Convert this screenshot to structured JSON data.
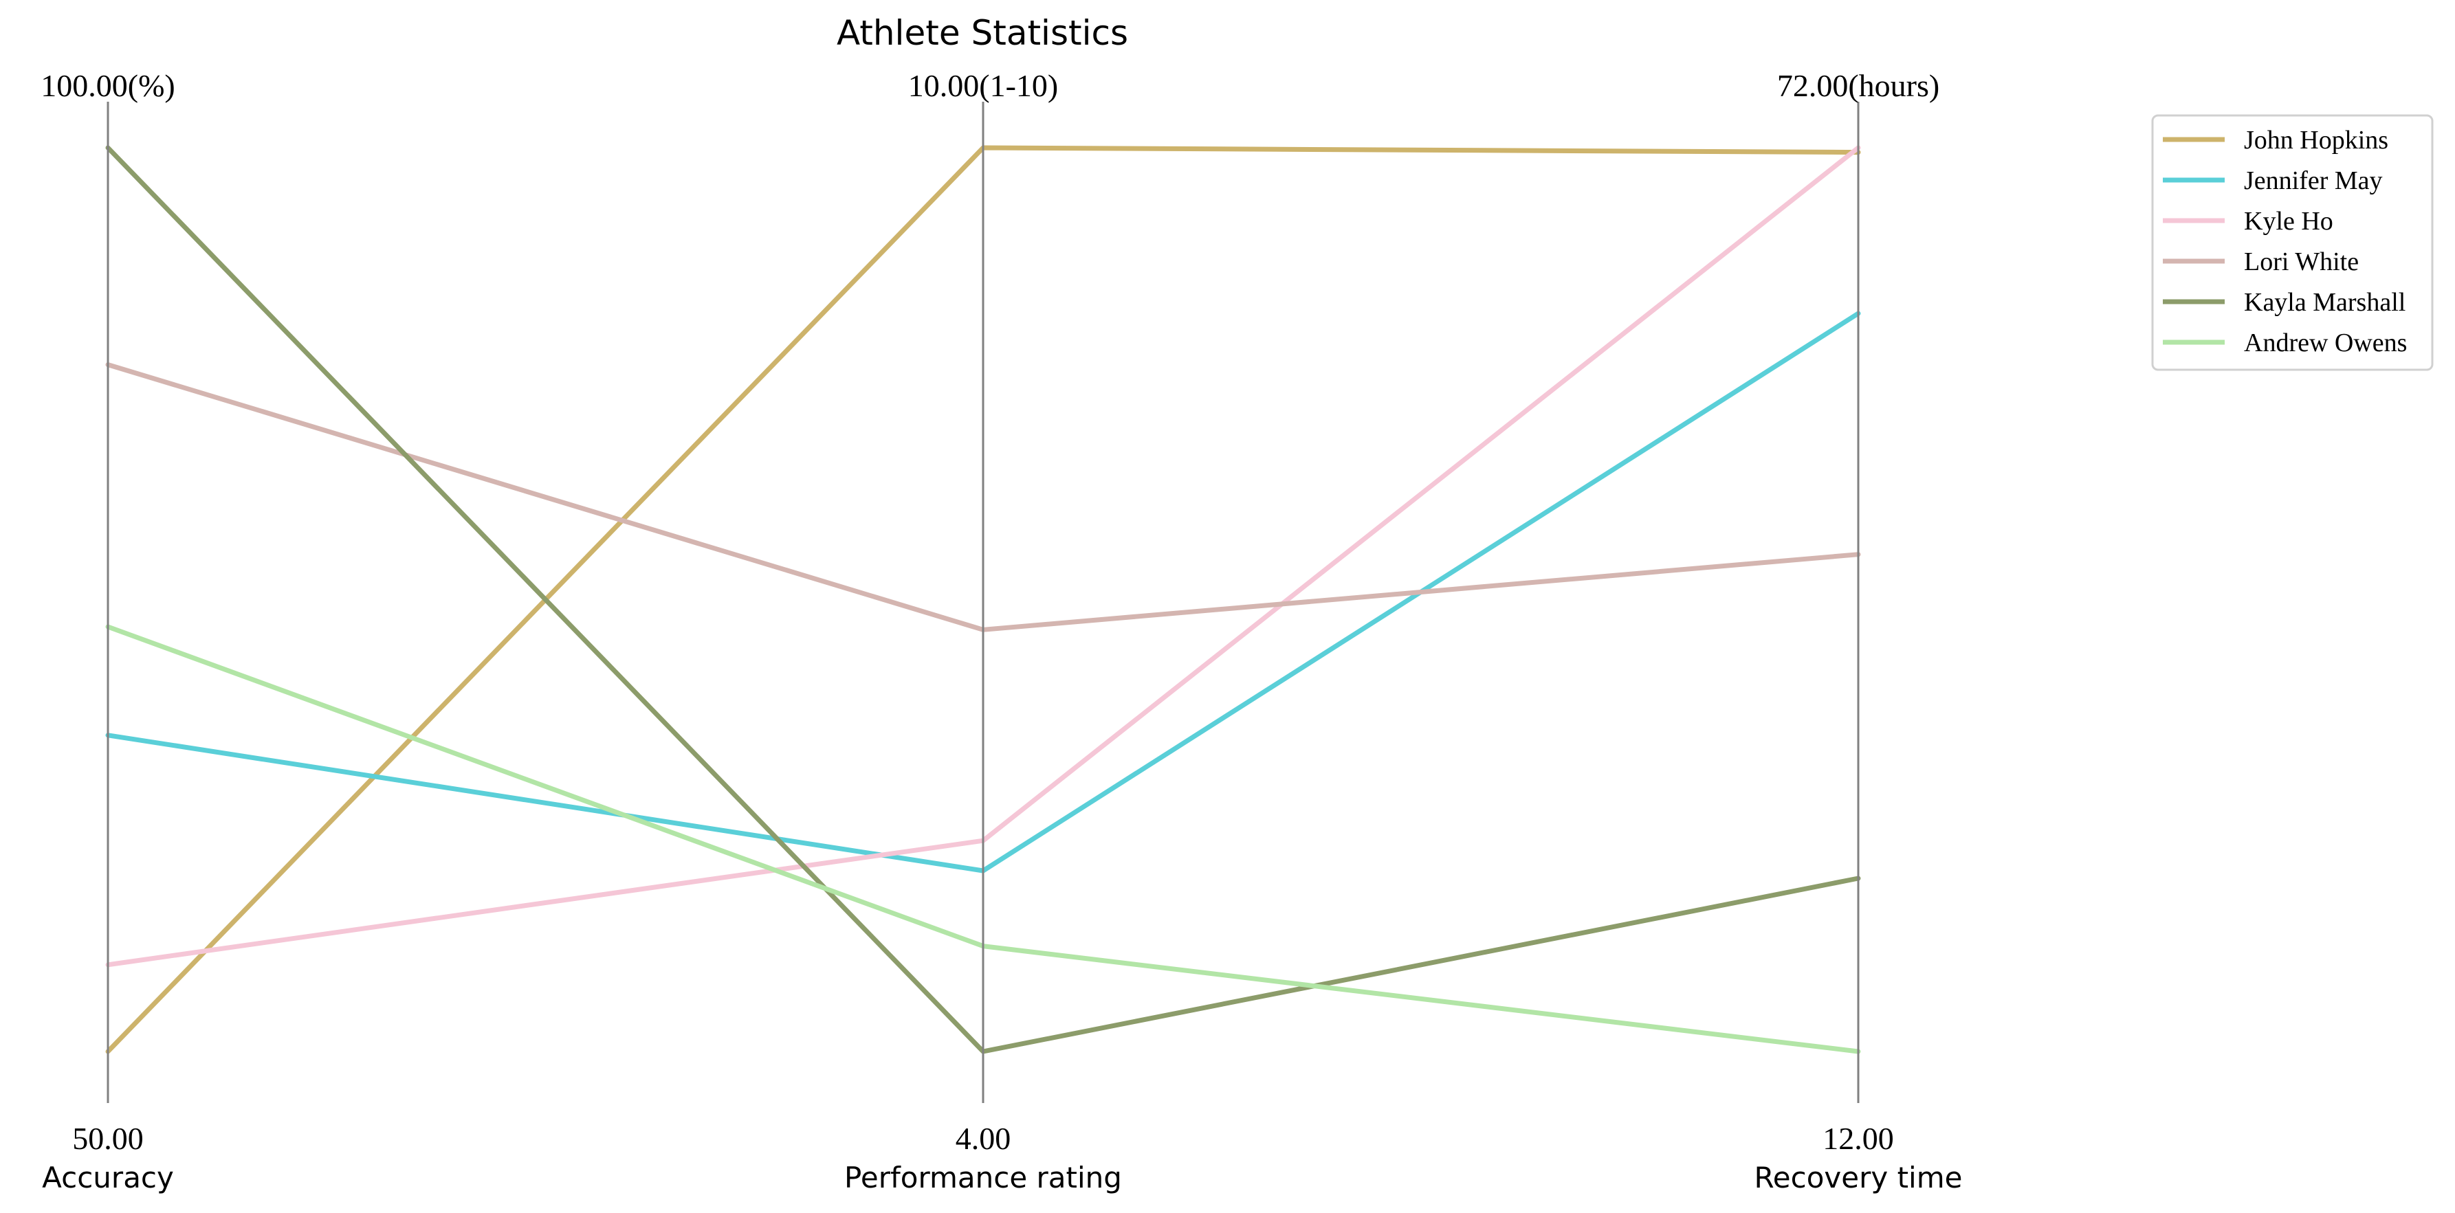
{
  "chart_data": {
    "type": "parallel-coordinates",
    "title": "Athlete Statistics",
    "axes": [
      {
        "label": "Accuracy",
        "min": 50.0,
        "max": 100.0,
        "min_label": "50.00",
        "max_label": "100.00(%)"
      },
      {
        "label": "Performance rating",
        "min": 4.0,
        "max": 10.0,
        "min_label": "4.00",
        "max_label": "10.00(1-10)"
      },
      {
        "label": "Recovery time",
        "min": 12.0,
        "max": 72.0,
        "min_label": "12.00",
        "max_label": "72.00(hours)"
      }
    ],
    "series": [
      {
        "name": "John Hopkins",
        "color": "#CDB36B",
        "values": [
          50.0,
          10.0,
          71.7
        ]
      },
      {
        "name": "Jennifer May",
        "color": "#5ACFD8",
        "values": [
          67.5,
          5.2,
          61.0
        ]
      },
      {
        "name": "Kyle Ho",
        "color": "#F5C6D6",
        "values": [
          54.8,
          5.4,
          72.0
        ]
      },
      {
        "name": "Lori White",
        "color": "#D4B5B0",
        "values": [
          88.0,
          6.8,
          45.0
        ]
      },
      {
        "name": "Kayla Marshall",
        "color": "#8C9C6A",
        "values": [
          100.0,
          4.0,
          23.5
        ]
      },
      {
        "name": "Andrew Owens",
        "color": "#B2E5A6",
        "values": [
          73.5,
          4.7,
          12.0
        ]
      }
    ],
    "legend_position": "top-right",
    "grid": false
  }
}
